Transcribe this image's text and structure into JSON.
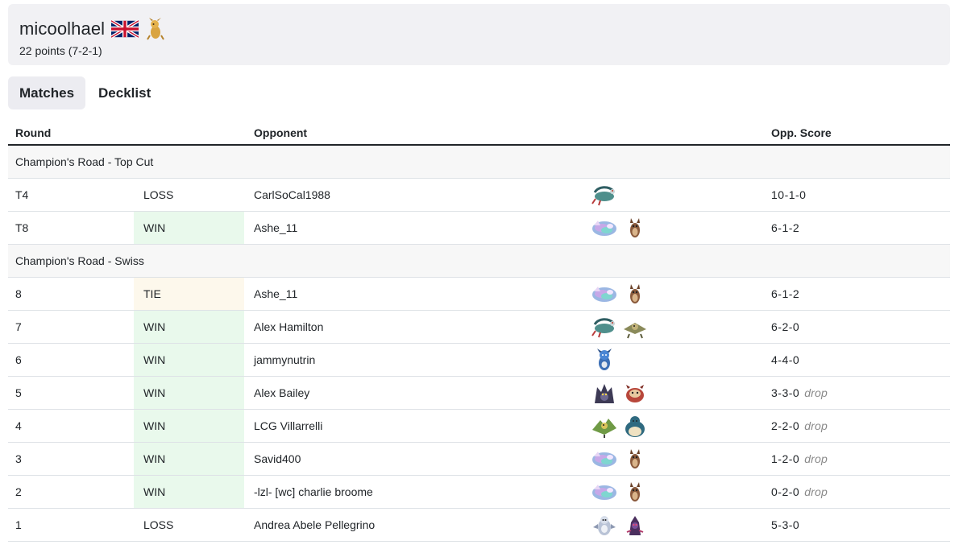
{
  "player": {
    "name": "micoolhael",
    "flag_icon": "uk-flag-icon",
    "sprite_icon": "pokemon-sprite-icon",
    "points": "22 points (7-2-1)"
  },
  "tabs": [
    {
      "label": "Matches",
      "active": true
    },
    {
      "label": "Decklist",
      "active": false
    }
  ],
  "table": {
    "headers": {
      "round": "Round",
      "opponent": "Opponent",
      "score": "Opp. Score"
    },
    "groups": [
      {
        "label": "Champion's Road - Top Cut",
        "rows": [
          {
            "round": "T4",
            "result": "LOSS",
            "opponent": "CarlSoCal1988",
            "deck": [
              "dragon-serpent-icon"
            ],
            "score": "10-1-0",
            "drop": ""
          },
          {
            "round": "T8",
            "result": "WIN",
            "opponent": "Ashe_11",
            "deck": [
              "crystal-dragon-icon",
              "brown-owl-icon"
            ],
            "score": "6-1-2",
            "drop": ""
          }
        ]
      },
      {
        "label": "Champion's Road - Swiss",
        "rows": [
          {
            "round": "8",
            "result": "TIE",
            "opponent": "Ashe_11",
            "deck": [
              "crystal-dragon-icon",
              "brown-owl-icon"
            ],
            "score": "6-1-2",
            "drop": ""
          },
          {
            "round": "7",
            "result": "WIN",
            "opponent": "Alex Hamilton",
            "deck": [
              "dragon-serpent-icon",
              "rock-bird-icon"
            ],
            "score": "6-2-0",
            "drop": ""
          },
          {
            "round": "6",
            "result": "WIN",
            "opponent": "jammynutrin",
            "deck": [
              "blue-creature-icon"
            ],
            "score": "4-4-0",
            "drop": ""
          },
          {
            "round": "5",
            "result": "WIN",
            "opponent": "Alex Bailey",
            "deck": [
              "dark-beast-icon",
              "red-creature-icon"
            ],
            "score": "3-3-0",
            "drop": "drop"
          },
          {
            "round": "4",
            "result": "WIN",
            "opponent": "LCG Villarrelli",
            "deck": [
              "green-bird-icon",
              "snorlax-icon"
            ],
            "score": "2-2-0",
            "drop": "drop"
          },
          {
            "round": "3",
            "result": "WIN",
            "opponent": "Savid400",
            "deck": [
              "crystal-dragon-icon",
              "brown-owl-icon"
            ],
            "score": "1-2-0",
            "drop": "drop"
          },
          {
            "round": "2",
            "result": "WIN",
            "opponent": "-lzl- [wc] charlie broome",
            "deck": [
              "crystal-dragon-icon",
              "brown-owl-icon"
            ],
            "score": "0-2-0",
            "drop": "drop"
          },
          {
            "round": "1",
            "result": "LOSS",
            "opponent": "Andrea Abele Pellegrino",
            "deck": [
              "pale-bird-icon",
              "purple-creature-icon"
            ],
            "score": "5-3-0",
            "drop": ""
          }
        ]
      }
    ]
  }
}
